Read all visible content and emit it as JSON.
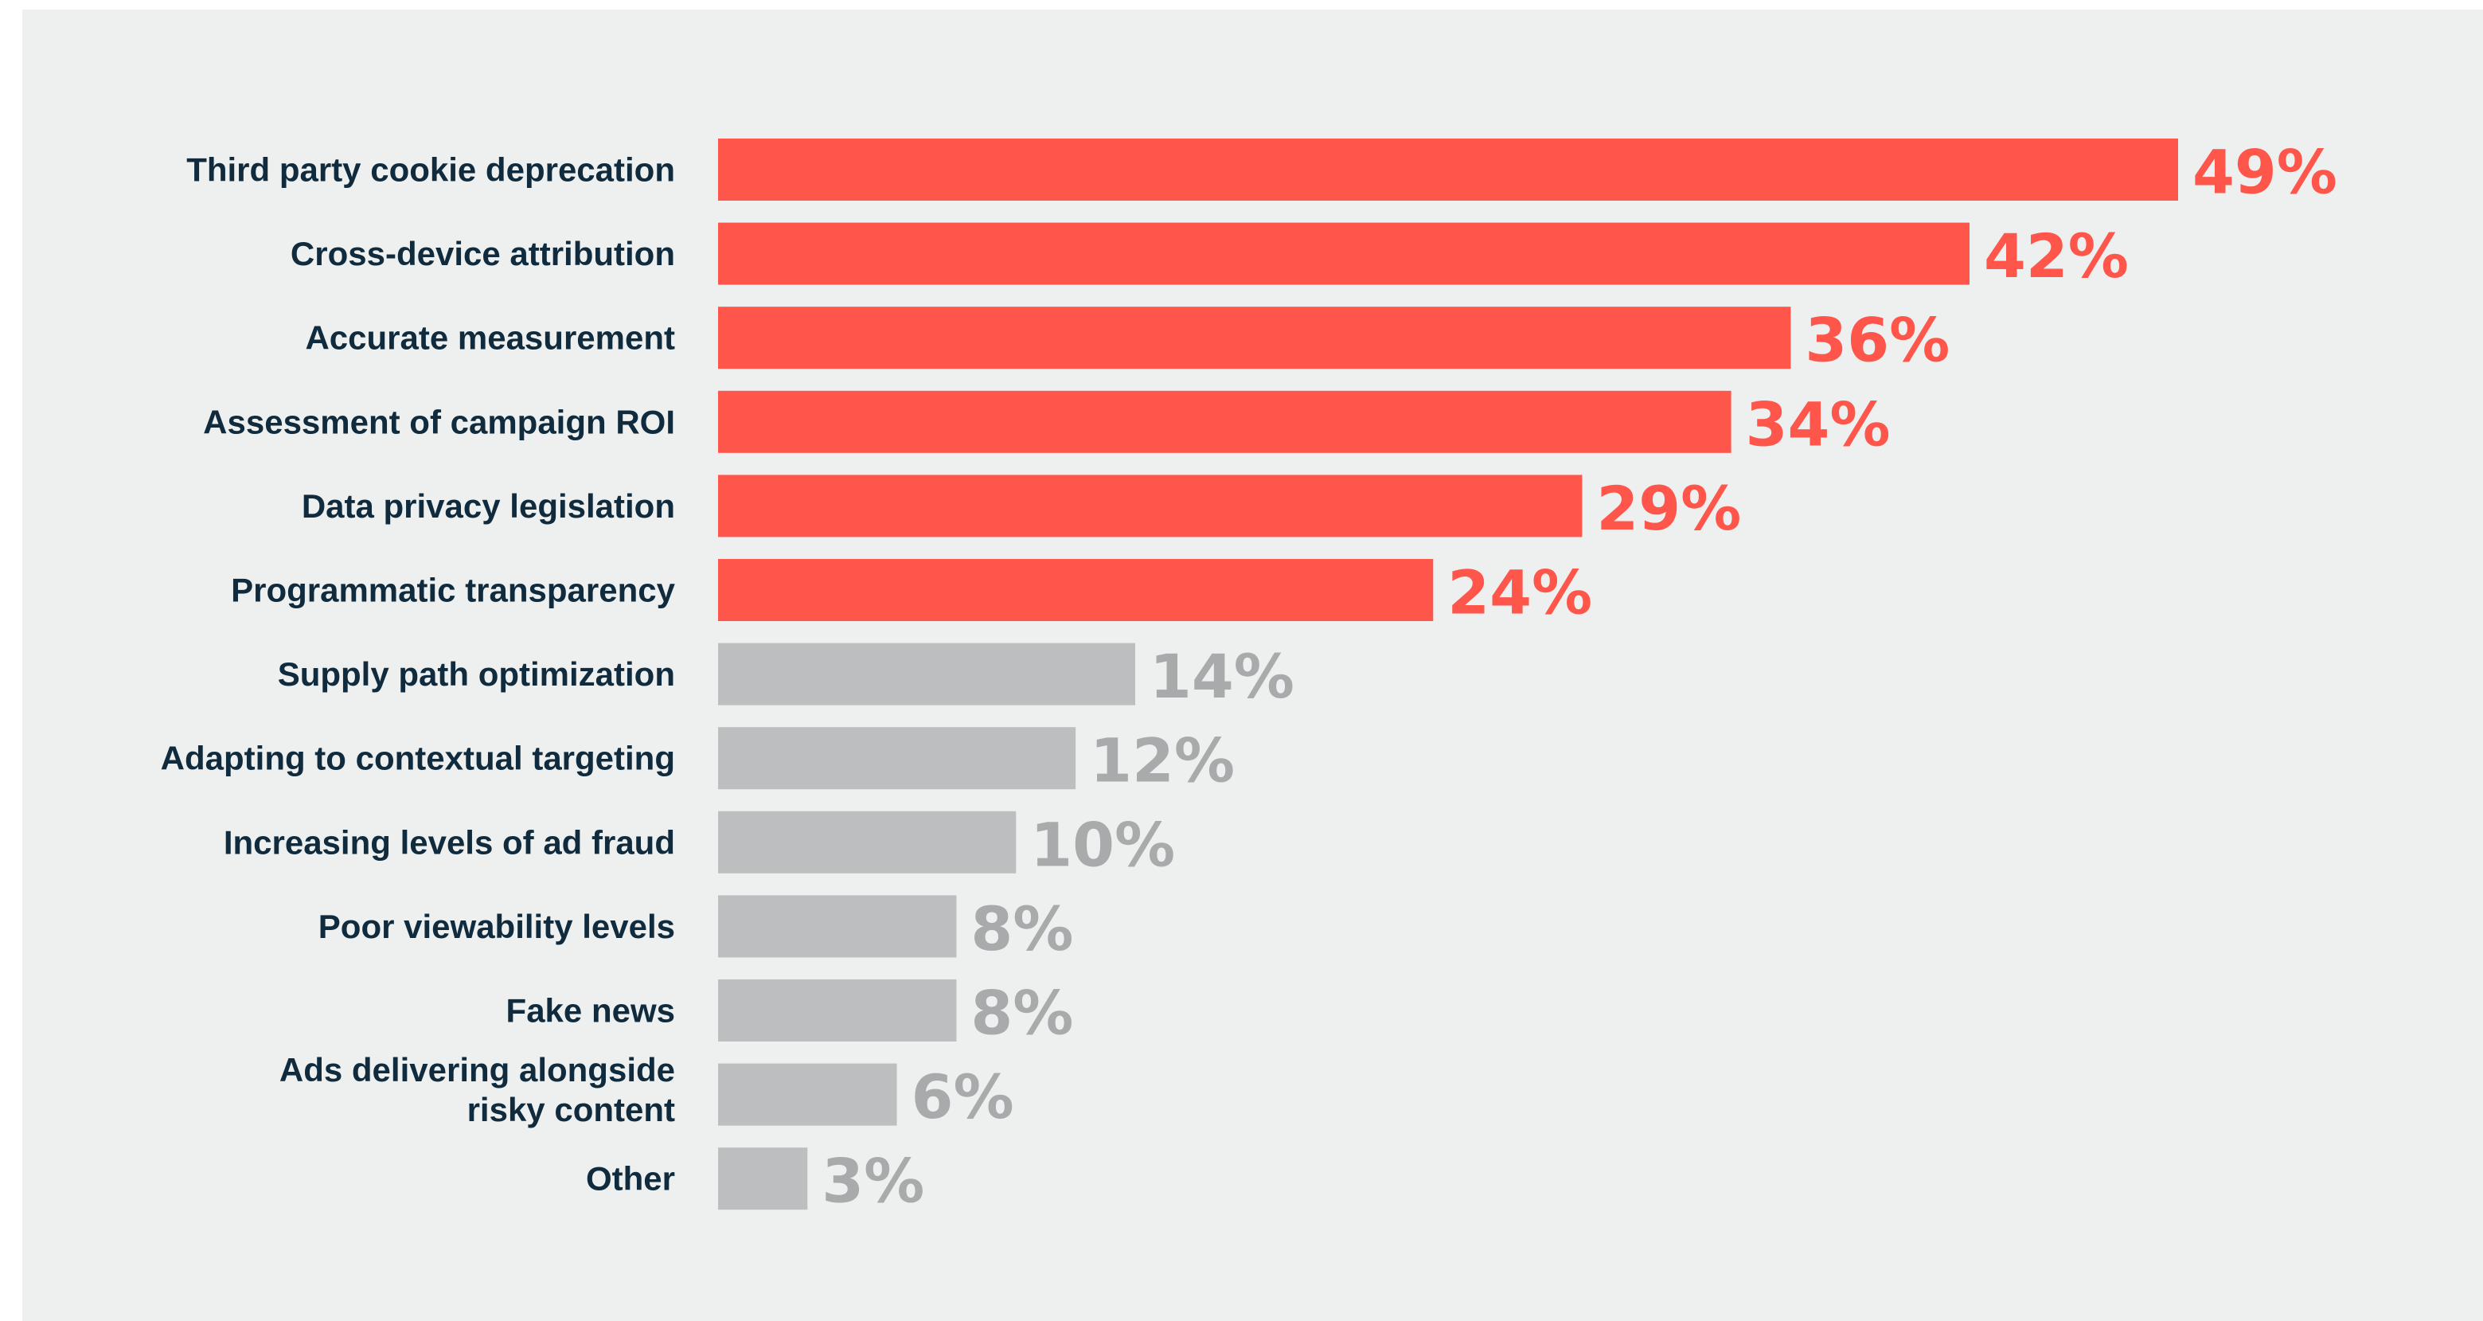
{
  "colors": {
    "background": "#eef0f0",
    "highlight": "#ff564b",
    "muted_bar": "#bdbebf",
    "muted_text": "#a9aaab",
    "label_text": "#0f2b3d"
  },
  "chart_data": {
    "type": "bar",
    "orientation": "horizontal",
    "title": "",
    "xlabel": "",
    "ylabel": "",
    "unit": "%",
    "xlim": [
      0,
      49
    ],
    "grid": false,
    "legend": "none",
    "categories": [
      [
        "Third party cookie deprecation"
      ],
      [
        "Cross-device attribution"
      ],
      [
        "Accurate measurement"
      ],
      [
        "Assessment of campaign ROI"
      ],
      [
        "Data privacy legislation"
      ],
      [
        "Programmatic transparency"
      ],
      [
        "Supply path optimization"
      ],
      [
        "Adapting to contextual targeting"
      ],
      [
        "Increasing levels of ad fraud"
      ],
      [
        "Poor viewability levels"
      ],
      [
        "Fake news"
      ],
      [
        "Ads delivering alongside",
        "risky content"
      ],
      [
        "Other"
      ]
    ],
    "values": [
      49,
      42,
      36,
      34,
      29,
      24,
      14,
      12,
      10,
      8,
      8,
      6,
      3
    ],
    "value_labels": [
      "49%",
      "42%",
      "36%",
      "34%",
      "29%",
      "24%",
      "14%",
      "12%",
      "10%",
      "8%",
      "8%",
      "6%",
      "3%"
    ],
    "highlighted": [
      true,
      true,
      true,
      true,
      true,
      true,
      false,
      false,
      false,
      false,
      false,
      false,
      false
    ]
  }
}
